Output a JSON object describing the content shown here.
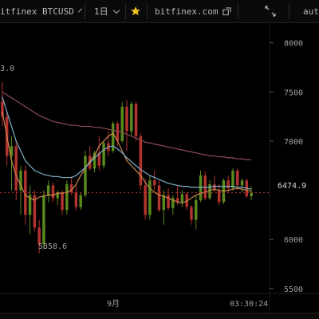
{
  "toolbar": {
    "symbol_label": "itfinex BTCUSD",
    "interval_label": "1日",
    "site_label": "bitfinex.com",
    "right_label": "auto"
  },
  "colors": {
    "up": "#5a8a1e",
    "down": "#b2332f",
    "ma_fast": "#c7894d",
    "ma_mid": "#7fb1c7",
    "ma_slow": "#8c4a55",
    "star": "#f5c518"
  },
  "icons": [
    "chevron-down-icon",
    "star-icon",
    "external-link-icon",
    "expand-icon"
  ],
  "axis": {
    "ticks": [
      "8000",
      "7500",
      "7000",
      "6000",
      "5500"
    ],
    "last_price": "6474.9",
    "time_label": "9月",
    "cursor_time": "03:30:24"
  },
  "annotations": {
    "high_label": "3.0",
    "low_label": "5858.6"
  },
  "chart_data": {
    "type": "candlestick",
    "ylim": [
      5450,
      8200
    ],
    "y_ticks": [
      8000,
      7500,
      7000,
      6000,
      5500
    ],
    "last_price": 6474.9,
    "candles": [
      [
        7400,
        7600,
        7150,
        7250
      ],
      [
        7250,
        7300,
        6750,
        6850
      ],
      [
        6850,
        7050,
        6500,
        6950
      ],
      [
        6950,
        7000,
        6400,
        6500
      ],
      [
        6500,
        6750,
        6250,
        6700
      ],
      [
        6700,
        6750,
        6150,
        6250
      ],
      [
        6250,
        6550,
        6050,
        6450
      ],
      [
        6450,
        6500,
        6080,
        6120
      ],
      [
        6120,
        6200,
        5858.6,
        5950
      ],
      [
        5950,
        6500,
        5900,
        6450
      ],
      [
        6450,
        6600,
        6380,
        6550
      ],
      [
        6550,
        6580,
        6380,
        6420
      ],
      [
        6420,
        6500,
        6350,
        6480
      ],
      [
        6480,
        6500,
        6250,
        6300
      ],
      [
        6300,
        6600,
        6250,
        6560
      ],
      [
        6560,
        6640,
        6450,
        6480
      ],
      [
        6480,
        6550,
        6300,
        6330
      ],
      [
        6330,
        6480,
        6300,
        6450
      ],
      [
        6450,
        6900,
        6430,
        6850
      ],
      [
        6850,
        6950,
        6700,
        6720
      ],
      [
        6720,
        6900,
        6680,
        6880
      ],
      [
        6880,
        7050,
        6700,
        6750
      ],
      [
        6750,
        7000,
        6720,
        6980
      ],
      [
        6980,
        7100,
        6850,
        6900
      ],
      [
        6900,
        7200,
        6880,
        7180
      ],
      [
        7180,
        7200,
        6950,
        7000
      ],
      [
        7000,
        7400,
        6980,
        7350
      ],
      [
        7350,
        7420,
        6900,
        7100
      ],
      [
        7100,
        7400,
        7050,
        7380
      ],
      [
        7380,
        7400,
        7000,
        7050
      ],
      [
        7050,
        7080,
        6500,
        6550
      ],
      [
        6550,
        6620,
        6200,
        6250
      ],
      [
        6250,
        6650,
        6200,
        6600
      ],
      [
        6600,
        6700,
        6500,
        6550
      ],
      [
        6550,
        6600,
        6280,
        6300
      ],
      [
        6300,
        6500,
        6150,
        6450
      ],
      [
        6450,
        6520,
        6300,
        6320
      ],
      [
        6320,
        6450,
        6250,
        6420
      ],
      [
        6420,
        6550,
        6350,
        6380
      ],
      [
        6380,
        6500,
        6330,
        6460
      ],
      [
        6460,
        6480,
        6300,
        6330
      ],
      [
        6330,
        6350,
        6150,
        6200
      ],
      [
        6200,
        6450,
        6100,
        6400
      ],
      [
        6400,
        6700,
        6380,
        6650
      ],
      [
        6650,
        6690,
        6400,
        6420
      ],
      [
        6420,
        6600,
        6400,
        6560
      ],
      [
        6560,
        6650,
        6480,
        6500
      ],
      [
        6500,
        6560,
        6350,
        6380
      ],
      [
        6380,
        6620,
        6360,
        6600
      ],
      [
        6600,
        6650,
        6480,
        6520
      ],
      [
        6520,
        6720,
        6500,
        6700
      ],
      [
        6700,
        6720,
        6500,
        6550
      ],
      [
        6550,
        6620,
        6480,
        6600
      ],
      [
        6600,
        6620,
        6420,
        6440
      ],
      [
        6440,
        6540,
        6400,
        6474.9
      ]
    ],
    "series": [
      {
        "name": "MA-fast",
        "values": [
          7300,
          7050,
          6800,
          6650,
          6550,
          6450,
          6420,
          6400,
          6430,
          6440,
          6450,
          6450,
          6470,
          6470,
          6480,
          6500,
          6560,
          6650,
          6720,
          6800,
          6850,
          6950,
          7000,
          7050,
          7080,
          7000,
          6900,
          6800,
          6750,
          6700,
          6650,
          6580,
          6520,
          6480,
          6450,
          6440,
          6420,
          6400,
          6380,
          6370,
          6390,
          6420,
          6450,
          6470,
          6480,
          6500,
          6510,
          6500,
          6490,
          6500,
          6510,
          6520,
          6510,
          6500,
          6490
        ]
      },
      {
        "name": "MA-mid",
        "values": [
          7450,
          7300,
          7150,
          7000,
          6900,
          6800,
          6750,
          6700,
          6680,
          6660,
          6650,
          6640,
          6640,
          6630,
          6630,
          6630,
          6650,
          6690,
          6730,
          6780,
          6830,
          6870,
          6910,
          6940,
          6950,
          6920,
          6880,
          6830,
          6790,
          6750,
          6710,
          6680,
          6650,
          6630,
          6610,
          6590,
          6570,
          6560,
          6550,
          6540,
          6540,
          6530,
          6530,
          6530,
          6530,
          6530,
          6540,
          6540,
          6540,
          6540,
          6540,
          6530,
          6530,
          6520,
          6510
        ]
      },
      {
        "name": "MA-slow",
        "values": [
          7500,
          7470,
          7440,
          7410,
          7380,
          7350,
          7320,
          7290,
          7260,
          7240,
          7220,
          7200,
          7190,
          7180,
          7170,
          7160,
          7160,
          7150,
          7150,
          7150,
          7140,
          7140,
          7130,
          7120,
          7110,
          7100,
          7090,
          7070,
          7050,
          7030,
          7010,
          6990,
          6980,
          6970,
          6960,
          6950,
          6940,
          6930,
          6920,
          6910,
          6900,
          6890,
          6880,
          6870,
          6860,
          6850,
          6850,
          6840,
          6840,
          6830,
          6830,
          6820,
          6820,
          6810,
          6810
        ]
      }
    ]
  }
}
